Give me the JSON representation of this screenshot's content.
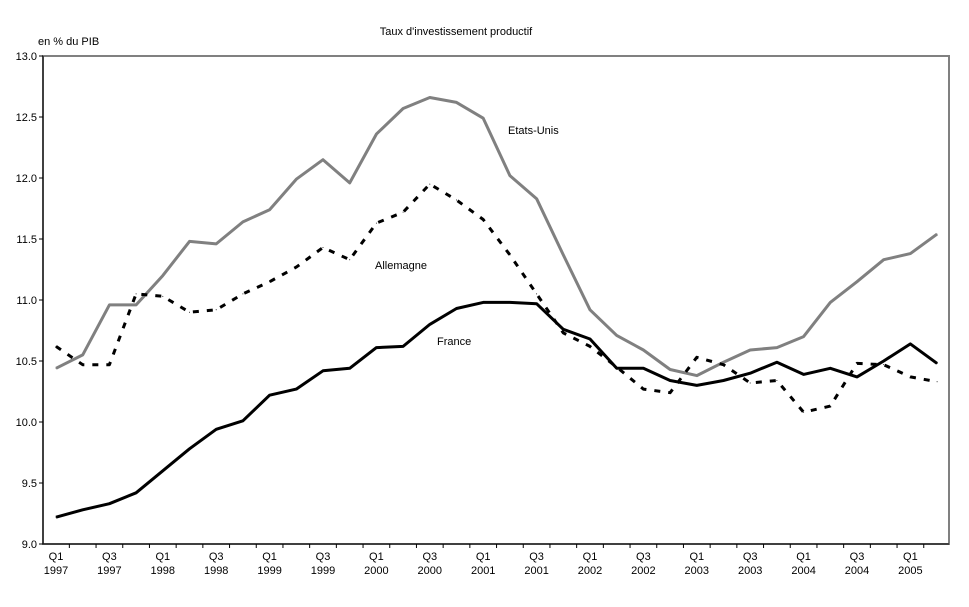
{
  "chart_data": {
    "type": "line",
    "title": "Taux d'investissement productif",
    "ylabel": "en % du PIB",
    "xlabel": "",
    "ylim": [
      9.0,
      13.0
    ],
    "yticks": [
      "9.0",
      "9.5",
      "10.0",
      "10.5",
      "11.0",
      "11.5",
      "12.0",
      "12.5",
      "13.0"
    ],
    "grid": false,
    "x": [
      "Q1 1997",
      "Q2 1997",
      "Q3 1997",
      "Q4 1997",
      "Q1 1998",
      "Q2 1998",
      "Q3 1998",
      "Q4 1998",
      "Q1 1999",
      "Q2 1999",
      "Q3 1999",
      "Q4 1999",
      "Q1 2000",
      "Q2 2000",
      "Q3 2000",
      "Q4 2000",
      "Q1 2001",
      "Q2 2001",
      "Q3 2001",
      "Q4 2001",
      "Q1 2002",
      "Q2 2002",
      "Q3 2002",
      "Q4 2002",
      "Q1 2003",
      "Q2 2003",
      "Q3 2003",
      "Q4 2003",
      "Q1 2004",
      "Q2 2004",
      "Q3 2004",
      "Q4 2004",
      "Q1 2005",
      "Q2 2005"
    ],
    "xtick_labels": [
      [
        "Q1",
        "1997"
      ],
      [
        "Q3",
        "1997"
      ],
      [
        "Q1",
        "1998"
      ],
      [
        "Q3",
        "1998"
      ],
      [
        "Q1",
        "1999"
      ],
      [
        "Q3",
        "1999"
      ],
      [
        "Q1",
        "2000"
      ],
      [
        "Q3",
        "2000"
      ],
      [
        "Q1",
        "2001"
      ],
      [
        "Q3",
        "2001"
      ],
      [
        "Q1",
        "2002"
      ],
      [
        "Q3",
        "2002"
      ],
      [
        "Q1",
        "2003"
      ],
      [
        "Q3",
        "2003"
      ],
      [
        "Q1",
        "2004"
      ],
      [
        "Q3",
        "2004"
      ],
      [
        "Q1",
        "2005"
      ]
    ],
    "series": [
      {
        "name": "Etats-Unis",
        "color": "#808080",
        "style": "solid",
        "values": [
          10.44,
          10.55,
          10.96,
          10.96,
          11.2,
          11.48,
          11.46,
          11.64,
          11.74,
          11.99,
          12.15,
          11.96,
          12.36,
          12.57,
          12.66,
          12.62,
          12.49,
          12.02,
          11.83,
          11.37,
          10.92,
          10.71,
          10.59,
          10.43,
          10.38,
          10.49,
          10.59,
          10.61,
          10.7,
          10.98,
          11.15,
          11.33,
          11.38,
          11.54
        ]
      },
      {
        "name": "Allemagne",
        "color": "#000000",
        "style": "dashed",
        "values": [
          10.62,
          10.47,
          10.47,
          11.05,
          11.03,
          10.9,
          10.92,
          11.05,
          11.15,
          11.27,
          11.43,
          11.33,
          11.63,
          11.72,
          11.95,
          11.82,
          11.66,
          11.37,
          11.05,
          10.73,
          10.62,
          10.45,
          10.27,
          10.24,
          10.53,
          10.47,
          10.32,
          10.34,
          10.08,
          10.13,
          10.48,
          10.47,
          10.37,
          10.33
        ]
      },
      {
        "name": "France",
        "color": "#000000",
        "style": "solid",
        "values": [
          9.22,
          9.28,
          9.33,
          9.42,
          9.6,
          9.78,
          9.94,
          10.01,
          10.22,
          10.27,
          10.42,
          10.44,
          10.61,
          10.62,
          10.8,
          10.93,
          10.98,
          10.98,
          10.97,
          10.76,
          10.68,
          10.44,
          10.44,
          10.34,
          10.3,
          10.34,
          10.4,
          10.49,
          10.39,
          10.44,
          10.37,
          10.5,
          10.64,
          10.48
        ]
      }
    ],
    "annotations": [
      "Etats-Unis",
      "Allemagne",
      "France"
    ]
  }
}
